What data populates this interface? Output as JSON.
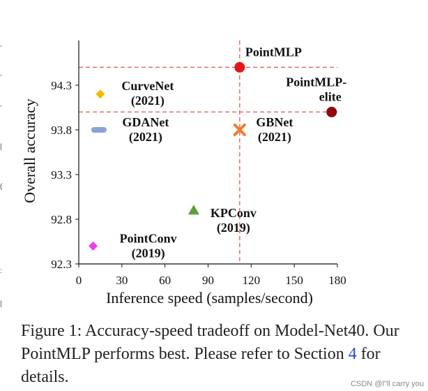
{
  "chart_data": {
    "type": "scatter",
    "xlabel": "Inference speed (samples/second)",
    "ylabel": "Overall accuracy",
    "xlim": [
      0,
      180
    ],
    "ylim": [
      92.3,
      94.8
    ],
    "x_ticks": [
      0,
      30,
      60,
      90,
      120,
      150,
      180
    ],
    "y_ticks": [
      92.3,
      92.8,
      93.3,
      93.8,
      94.3
    ],
    "y_tick_labels": [
      "92.3",
      "92.8",
      "93.3",
      "93.8",
      "94.3"
    ],
    "points": [
      {
        "name": "PointMLP",
        "year": "",
        "x": 112,
        "y": 94.5,
        "marker": "circle",
        "color": "#e81717"
      },
      {
        "name": "PointMLP-",
        "name2": "elite",
        "year": "",
        "x": 176,
        "y": 94.0,
        "marker": "circle",
        "color": "#8b0a0a"
      },
      {
        "name": "CurveNet",
        "year": "(2021)",
        "x": 15,
        "y": 94.2,
        "marker": "diamond",
        "color": "#f5b800"
      },
      {
        "name": "GDANet",
        "year": "(2021)",
        "x": 14,
        "y": 93.8,
        "marker": "bar",
        "color": "#8aa2d4"
      },
      {
        "name": "GBNet",
        "year": "(2021)",
        "x": 112,
        "y": 93.8,
        "marker": "x",
        "color": "#f07c2e"
      },
      {
        "name": "KPConv",
        "year": "(2019)",
        "x": 80,
        "y": 92.9,
        "marker": "triangle",
        "color": "#5b9e3a"
      },
      {
        "name": "PointConv",
        "year": "(2019)",
        "x": 10,
        "y": 92.5,
        "marker": "diamond",
        "color": "#f43ce8"
      }
    ],
    "reference_lines": {
      "x": 112,
      "y": [
        94.5,
        94.0
      ],
      "color": "#e55555"
    }
  },
  "caption": {
    "prefix": "Figure 1: Accuracy-speed tradeoff on Model-Net40. Our PointMLP performs best. Please refer to Section ",
    "ref": "4",
    "suffix": " for details."
  },
  "watermark": "CSDN @l\"ll  carry  you",
  "edge_marks": [
    ",",
    ",",
    "’",
    "|",
    "(",
    ":",
    "|"
  ]
}
